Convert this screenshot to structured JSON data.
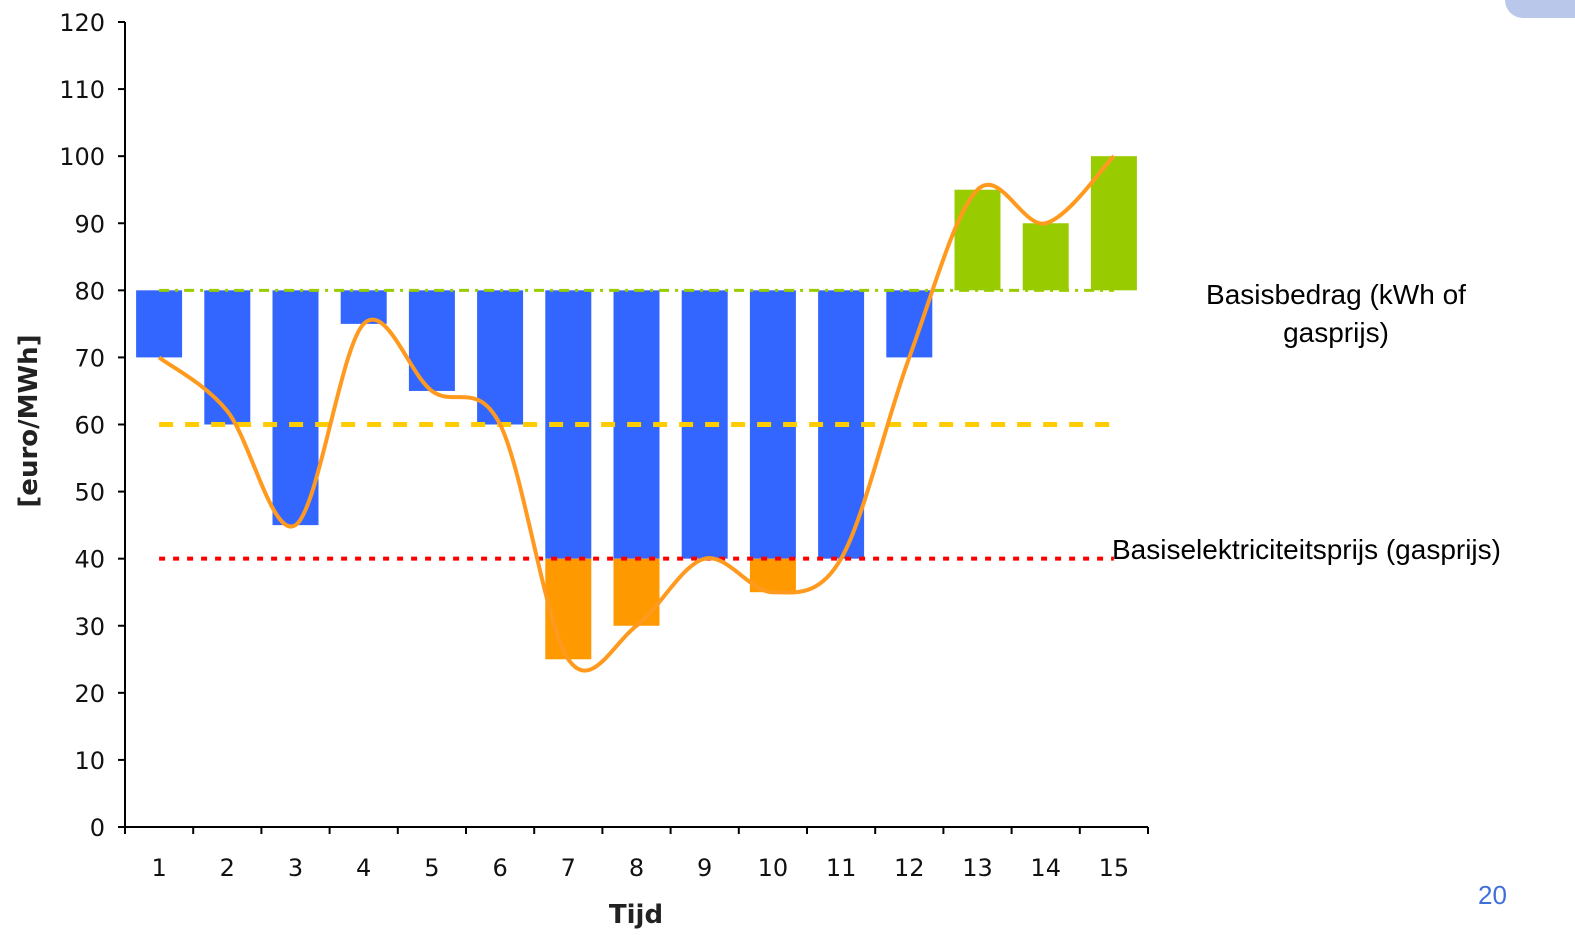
{
  "chart_data": {
    "type": "bar",
    "xlabel": "Tijd",
    "ylabel": "[euro/MWh]",
    "ylim": [
      0,
      120
    ],
    "yticks": [
      0,
      10,
      20,
      30,
      40,
      50,
      60,
      70,
      80,
      90,
      100,
      110,
      120
    ],
    "categories": [
      "1",
      "2",
      "3",
      "4",
      "5",
      "6",
      "7",
      "8",
      "9",
      "10",
      "11",
      "12",
      "13",
      "14",
      "15"
    ],
    "floating_bars": [
      {
        "name": "",
        "color": "#3366ff",
        "ranges": [
          [
            70,
            80
          ],
          [
            60,
            80
          ],
          [
            45,
            80
          ],
          [
            75,
            80
          ],
          [
            65,
            80
          ],
          [
            60,
            80
          ],
          [
            40,
            80
          ],
          [
            40,
            80
          ],
          [
            40,
            80
          ],
          [
            40,
            80
          ],
          [
            40,
            80
          ],
          [
            70,
            80
          ],
          null,
          null,
          null
        ]
      },
      {
        "name": "",
        "color": "#ff9900",
        "ranges": [
          null,
          null,
          null,
          null,
          null,
          null,
          [
            25,
            40
          ],
          [
            30,
            40
          ],
          null,
          [
            35,
            40
          ],
          null,
          null,
          null,
          null,
          null
        ]
      },
      {
        "name": "",
        "color": "#99cc00",
        "ranges": [
          null,
          null,
          null,
          null,
          null,
          null,
          null,
          null,
          null,
          null,
          null,
          null,
          [
            80,
            95
          ],
          [
            80,
            90
          ],
          [
            80,
            100
          ]
        ]
      }
    ],
    "series": [
      {
        "name": "",
        "type": "line",
        "color": "#ff9a1f",
        "values": [
          70,
          62,
          45,
          75,
          65,
          60,
          25,
          30,
          40,
          35,
          40,
          70,
          95,
          90,
          100
        ]
      }
    ],
    "reference_lines": [
      {
        "value": 80,
        "color": "#99cc00",
        "style": "dash-dot"
      },
      {
        "value": 60,
        "color": "#ffcc00",
        "style": "dashed"
      },
      {
        "value": 40,
        "color": "#ff0000",
        "style": "dotted"
      }
    ],
    "grid": false
  },
  "annotations": {
    "basisbedrag_line1": "Basisbedrag (kWh of",
    "basisbedrag_line2": "gasprijs)",
    "basiselektriciteitsprijs": "Basiselektriciteitsprijs (gasprijs)"
  },
  "page_number": "20"
}
